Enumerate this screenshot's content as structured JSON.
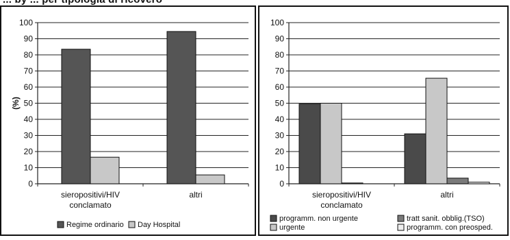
{
  "page": {
    "heading": "... by ... per tipologia di ricovero"
  },
  "chart_data": [
    {
      "type": "bar",
      "title": "",
      "xlabel": "",
      "ylabel": "(%)",
      "ylim": [
        0,
        100
      ],
      "yticks": [
        0,
        10,
        20,
        30,
        40,
        50,
        60,
        70,
        80,
        90,
        100
      ],
      "grid": true,
      "legend_position": "bottom",
      "categories": [
        [
          "sieropositivi/HIV",
          "conclamato"
        ],
        [
          "altri"
        ]
      ],
      "series": [
        {
          "name": "Regime ordinario",
          "color": "#555555",
          "values": [
            83.5,
            94.5
          ]
        },
        {
          "name": "Day Hospital",
          "color": "#c8c8c8",
          "values": [
            16.5,
            5.5
          ]
        }
      ]
    },
    {
      "type": "bar",
      "title": "",
      "xlabel": "",
      "ylabel": "",
      "ylim": [
        0,
        100
      ],
      "yticks": [
        0,
        10,
        20,
        30,
        40,
        50,
        60,
        70,
        80,
        90,
        100
      ],
      "grid": true,
      "legend_position": "bottom",
      "categories": [
        [
          "sieropositivi/HIV",
          "conclamato"
        ],
        [
          "altri"
        ]
      ],
      "series": [
        {
          "name": "programm. non urgente",
          "color": "#4a4a4a",
          "values": [
            49.5,
            31
          ]
        },
        {
          "name": "urgente",
          "color": "#c8c8c8",
          "values": [
            50,
            65.5
          ]
        },
        {
          "name": "tratt sanit. obblig.(TSO)",
          "color": "#7a7a7a",
          "values": [
            0.5,
            3.5
          ]
        },
        {
          "name": "programm. con preosped.",
          "color": "#eeeeee",
          "values": [
            0,
            1
          ]
        }
      ]
    }
  ]
}
